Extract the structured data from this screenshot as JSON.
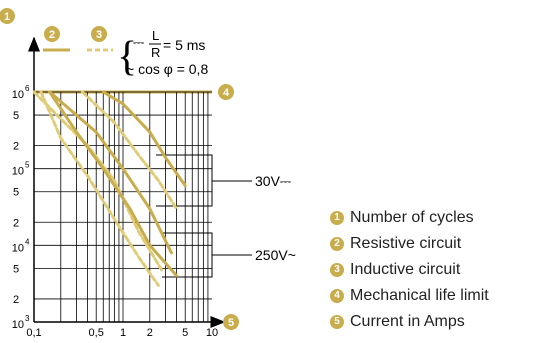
{
  "chart_data": {
    "type": "line",
    "scale": "log-log",
    "x_ticks": [
      {
        "value": 0.1,
        "label": "0,1"
      },
      {
        "value": 0.5,
        "label": "0,5"
      },
      {
        "value": 1,
        "label": "1"
      },
      {
        "value": 2,
        "label": "2"
      },
      {
        "value": 5,
        "label": "5"
      },
      {
        "value": 10,
        "label": "10"
      }
    ],
    "y_ticks": [
      {
        "value": 1000,
        "label_base": "10",
        "label_exp": "3"
      },
      {
        "value": 2000,
        "label": "2"
      },
      {
        "value": 5000,
        "label": "5"
      },
      {
        "value": 10000,
        "label_base": "10",
        "label_exp": "4"
      },
      {
        "value": 20000,
        "label": "2"
      },
      {
        "value": 50000,
        "label": "5"
      },
      {
        "value": 100000,
        "label_base": "10",
        "label_exp": "5"
      },
      {
        "value": 200000,
        "label": "2"
      },
      {
        "value": 500000,
        "label": "5"
      },
      {
        "value": 1000000,
        "label_base": "10",
        "label_exp": "6"
      }
    ],
    "xlim": [
      0.1,
      10
    ],
    "ylim": [
      1000,
      1000000
    ],
    "grid": true,
    "mechanical_limit": 1000000,
    "series": [
      {
        "group": "30V",
        "style": "resistive",
        "x": [
          0.6,
          1,
          2,
          3,
          5
        ],
        "y": [
          1000000,
          700000,
          300000,
          140000,
          60000
        ]
      },
      {
        "group": "30V",
        "style": "inductive",
        "x": [
          0.35,
          0.8,
          1.5,
          2.5,
          4
        ],
        "y": [
          1000000,
          400000,
          150000,
          70000,
          30000
        ]
      },
      {
        "group": "30V",
        "style": "resistive",
        "x": [
          0.15,
          0.5,
          1,
          2,
          3.5
        ],
        "y": [
          1000000,
          300000,
          100000,
          30000,
          8000
        ]
      },
      {
        "group": "30V",
        "style": "inductive",
        "x": [
          0.1,
          0.4,
          0.8,
          1.5,
          2.8
        ],
        "y": [
          1000000,
          200000,
          70000,
          15000,
          4500
        ]
      },
      {
        "group": "250V",
        "style": "resistive",
        "x": [
          0.15,
          0.3,
          0.6,
          1.2,
          2,
          4
        ],
        "y": [
          1000000,
          300000,
          100000,
          30000,
          10000,
          4000
        ]
      },
      {
        "group": "250V",
        "style": "inductive",
        "x": [
          0.12,
          0.2,
          0.4,
          0.8,
          1.5,
          2.5
        ],
        "y": [
          1000000,
          250000,
          80000,
          22000,
          7000,
          3000
        ]
      }
    ],
    "group_labels": [
      "30V⎓",
      "250V~"
    ],
    "style_colors": {
      "resistive": "#c9ac4c",
      "inductive": "#e0cc78"
    }
  },
  "badges": [
    "1",
    "2",
    "3",
    "4",
    "5"
  ],
  "formula": {
    "dc_symbol": "⎓",
    "numerator": "L",
    "denominator": "R",
    "dc_value": "= 5 ms",
    "ac_text": "~ cos φ = 0,8"
  },
  "legend": [
    {
      "num": "1",
      "label": "Number of cycles"
    },
    {
      "num": "2",
      "label": "Resistive circuit"
    },
    {
      "num": "3",
      "label": "Inductive circuit"
    },
    {
      "num": "4",
      "label": "Mechanical life limit"
    },
    {
      "num": "5",
      "label": "Current in Amps"
    }
  ]
}
